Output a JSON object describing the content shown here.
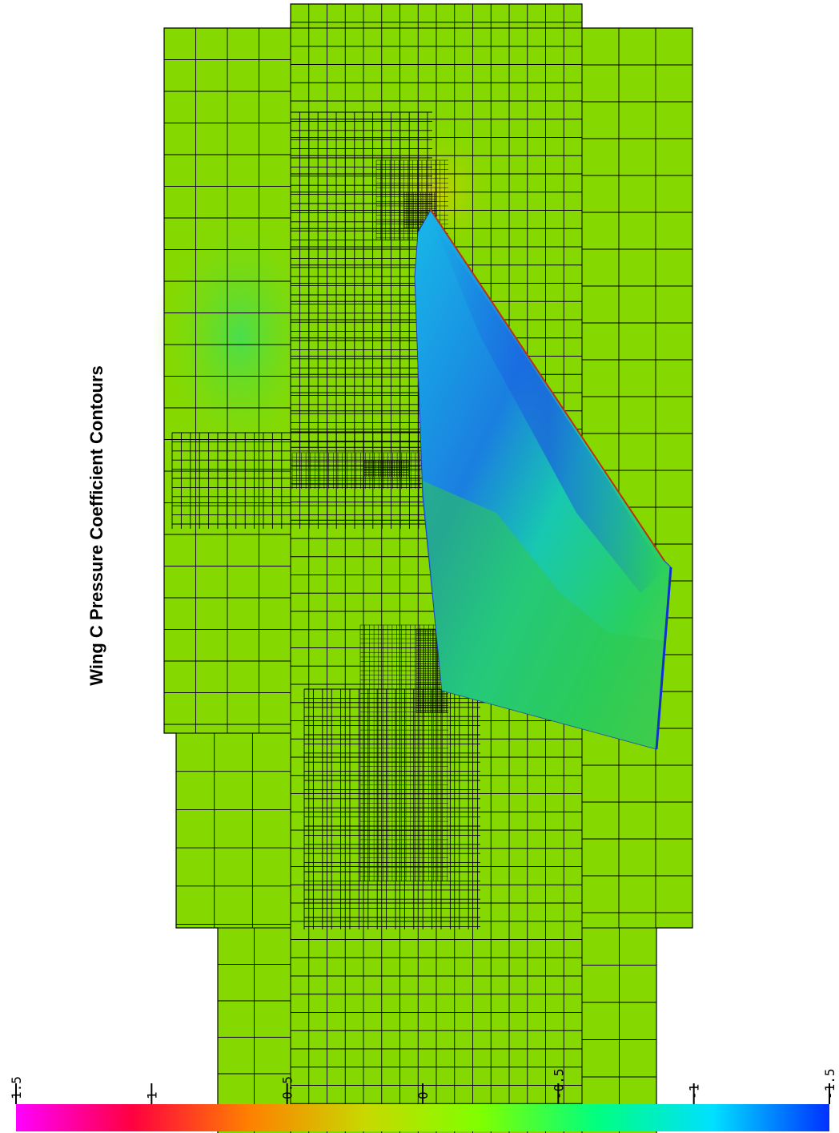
{
  "figure": {
    "title": "Wing C Pressure Coefficient Contours"
  },
  "colorbar": {
    "min": -1.5,
    "max": 1.5,
    "ticks": [
      {
        "value": 1.5,
        "label": "1.5"
      },
      {
        "value": 1,
        "label": "1"
      },
      {
        "value": 0.5,
        "label": "0.5"
      },
      {
        "value": 0,
        "label": "0"
      },
      {
        "value": -0.5,
        "label": "-0.5"
      },
      {
        "value": -1,
        "label": "-1"
      },
      {
        "value": -1.5,
        "label": "-1.5"
      }
    ],
    "colormap": [
      "#ff00ff",
      "#ff0040",
      "#ff8000",
      "#c8d800",
      "#7fff00",
      "#00ff80",
      "#00e0ff",
      "#0030ff"
    ]
  },
  "colors": {
    "freestream": "#86d900",
    "grid_line": "#000000",
    "wing_low": "#1b6fe0",
    "wing_mid": "#18c8a0",
    "wing_root": "#2fd24a"
  }
}
